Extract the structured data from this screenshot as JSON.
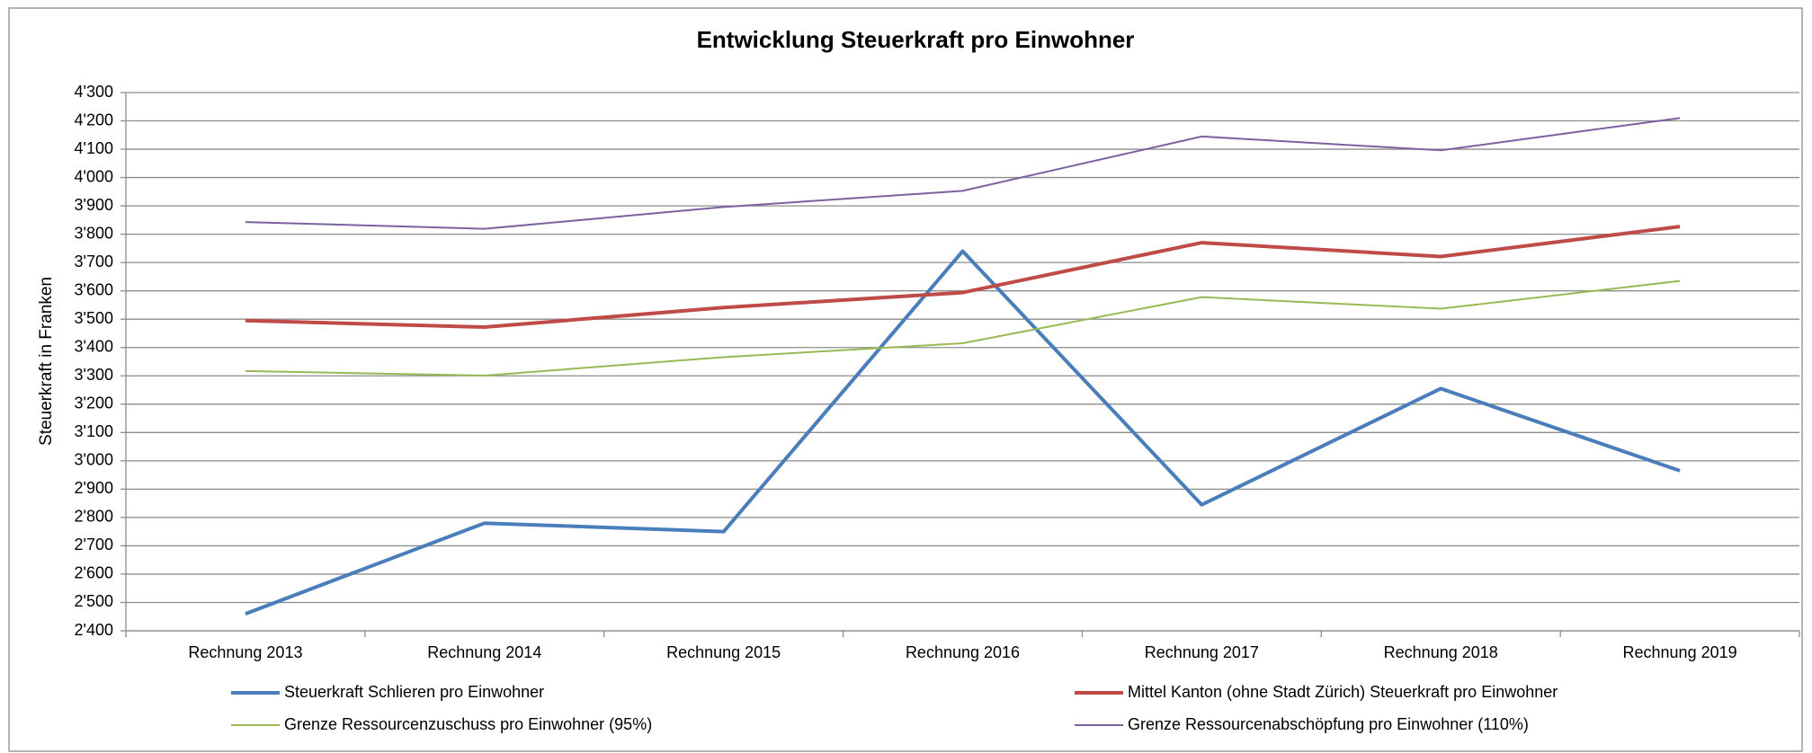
{
  "chart_data": {
    "type": "line",
    "title": "Entwicklung Steuerkraft  pro Einwohner",
    "y_label": "Steuerkraft in Franken",
    "categories": [
      "Rechnung 2013",
      "Rechnung 2014",
      "Rechnung 2015",
      "Rechnung 2016",
      "Rechnung 2017",
      "Rechnung 2018",
      "Rechnung 2019"
    ],
    "series": [
      {
        "name": "Steuerkraft Schlieren pro Einwohner",
        "color": "#4a7ebb",
        "width": 4,
        "values": [
          2460,
          2780,
          2750,
          3740,
          2845,
          3255,
          2965
        ]
      },
      {
        "name": "Mittel Kanton (ohne Stadt Zürich) Steuerkraft pro Einwohner",
        "color": "#be4b48",
        "width": 4,
        "values": [
          3495,
          3472,
          3541,
          3594,
          3770,
          3721,
          3827
        ]
      },
      {
        "name": "Grenze Ressourcenzuschuss pro Einwohner (95%)",
        "color": "#98b954",
        "width": 2,
        "values": [
          3317,
          3301,
          3366,
          3415,
          3578,
          3537,
          3635
        ]
      },
      {
        "name": "Grenze Ressourcenabschöpfung pro Einwohner (110%)",
        "color": "#7d60a0",
        "width": 2,
        "values": [
          3843,
          3819,
          3896,
          3953,
          4145,
          4096,
          4210
        ]
      }
    ],
    "ylim": [
      2400,
      4300
    ],
    "yticks": [
      {
        "value": 2400,
        "label": "2'400"
      },
      {
        "value": 2500,
        "label": "2'500"
      },
      {
        "value": 2600,
        "label": "2'600"
      },
      {
        "value": 2700,
        "label": "2'700"
      },
      {
        "value": 2800,
        "label": "2'800"
      },
      {
        "value": 2900,
        "label": "2'900"
      },
      {
        "value": 3000,
        "label": "3'000"
      },
      {
        "value": 3100,
        "label": "3'100"
      },
      {
        "value": 3200,
        "label": "3'200"
      },
      {
        "value": 3300,
        "label": "3'300"
      },
      {
        "value": 3400,
        "label": "3'400"
      },
      {
        "value": 3500,
        "label": "3'500"
      },
      {
        "value": 3600,
        "label": "3'600"
      },
      {
        "value": 3700,
        "label": "3'700"
      },
      {
        "value": 3800,
        "label": "3'800"
      },
      {
        "value": 3900,
        "label": "3'900"
      },
      {
        "value": 4000,
        "label": "4'000"
      },
      {
        "value": 4100,
        "label": "4'100"
      },
      {
        "value": 4200,
        "label": "4'200"
      },
      {
        "value": 4300,
        "label": "4'300"
      }
    ],
    "grid": true,
    "legend": "bottom"
  }
}
